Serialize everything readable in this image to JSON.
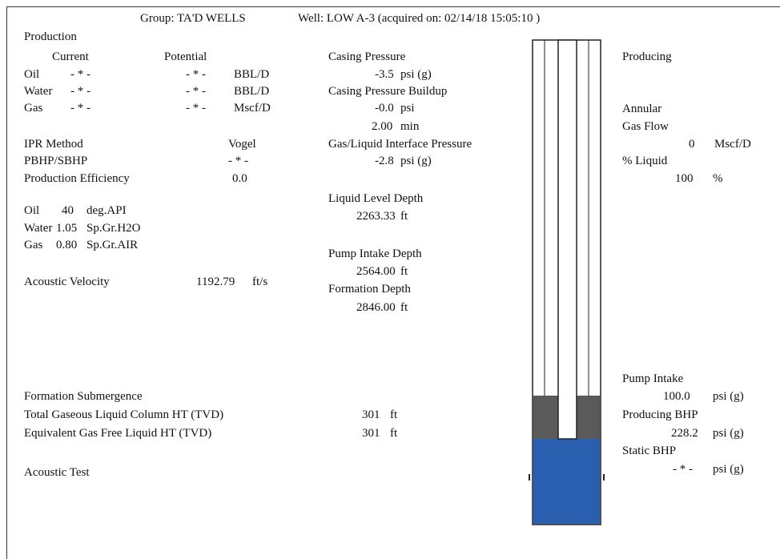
{
  "header": {
    "group": "Group: TA'D WELLS",
    "well": "Well: LOW A-3 (acquired on: 02/14/18 15:05:10 )"
  },
  "production": {
    "title": "Production",
    "current": "Current",
    "potential": "Potential",
    "rows": [
      {
        "label": "Oil",
        "current": "- * -",
        "potential": "- * -",
        "unit": "BBL/D"
      },
      {
        "label": "Water",
        "current": "- * -",
        "potential": "- * -",
        "unit": "BBL/D"
      },
      {
        "label": "Gas",
        "current": "- * -",
        "potential": "- * -",
        "unit": "Mscf/D"
      }
    ]
  },
  "ipr": {
    "method_label": "IPR Method",
    "method": "Vogel",
    "pbhp_label": "PBHP/SBHP",
    "pbhp": "- * -",
    "efficiency_label": "Production Efficiency",
    "efficiency": "0.0"
  },
  "fluids": [
    {
      "label": "Oil",
      "value": "40",
      "unit": "deg.API"
    },
    {
      "label": "Water",
      "value": "1.05",
      "unit": "Sp.Gr.H2O"
    },
    {
      "label": "Gas",
      "value": "0.80",
      "unit": "Sp.Gr.AIR"
    }
  ],
  "acoustic_velocity": {
    "label": "Acoustic Velocity",
    "value": "1192.79",
    "unit": "ft/s"
  },
  "submergence": {
    "title": "Formation Submergence",
    "total_label": "Total Gaseous Liquid Column HT (TVD)",
    "total": "301",
    "total_unit": "ft",
    "equiv_label": "Equivalent Gas Free Liquid HT (TVD)",
    "equiv": "301",
    "equiv_unit": "ft"
  },
  "acoustic_test": "Acoustic Test",
  "middle": {
    "casing_label": "Casing Pressure",
    "casing": "-3.5",
    "casing_unit": "psi (g)",
    "buildup_label": "Casing Pressure Buildup",
    "buildup": "-0.0",
    "buildup_unit": "psi",
    "buildup_time": "2.00",
    "buildup_time_unit": "min",
    "interface_label": "Gas/Liquid Interface Pressure",
    "interface": "-2.8",
    "interface_unit": "psi (g)",
    "liquid_label": "Liquid Level Depth",
    "liquid": "2263.33",
    "liquid_unit": "ft",
    "pump_label": "Pump Intake Depth",
    "pump": "2564.00",
    "pump_unit": "ft",
    "formation_label": "Formation Depth",
    "formation": "2846.00",
    "formation_unit": "ft"
  },
  "right": {
    "producing": "Producing",
    "annular": "Annular",
    "gas_flow": "Gas Flow",
    "gas_flow_value": "0",
    "gas_flow_unit": "Mscf/D",
    "liquid_label": "% Liquid",
    "liquid": "100",
    "liquid_unit": "%",
    "pump_label": "Pump Intake",
    "pump": "100.0",
    "pump_unit": "psi (g)",
    "pbhp_label": "Producing BHP",
    "pbhp": "228.2",
    "pbhp_unit": "psi (g)",
    "sbhp_label": "Static BHP",
    "sbhp": "- * -",
    "sbhp_unit": "psi (g)"
  }
}
